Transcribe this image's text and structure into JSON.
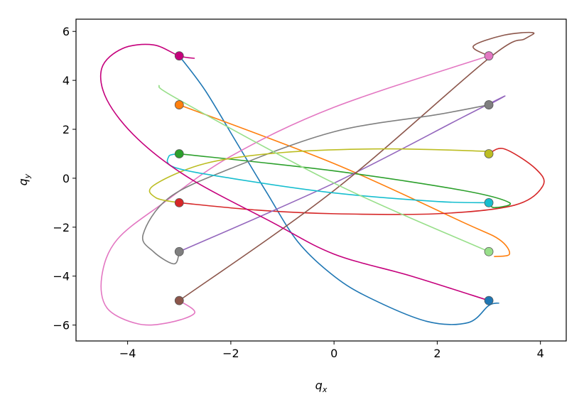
{
  "chart_data": {
    "type": "line",
    "xlabel": {
      "main": "q",
      "sub": "x"
    },
    "ylabel": {
      "main": "q",
      "sub": "y"
    },
    "xlim": [
      -5.0,
      4.5
    ],
    "ylim": [
      -6.65,
      6.5
    ],
    "xticks": [
      {
        "value": -4,
        "label": "−4"
      },
      {
        "value": -2,
        "label": "−2"
      },
      0,
      2,
      4
    ],
    "yticks": [
      {
        "value": -6,
        "label": "−6"
      },
      {
        "value": -4,
        "label": "−4"
      },
      {
        "value": -2,
        "label": "−2"
      },
      0,
      2,
      4,
      6
    ],
    "series": [
      {
        "color": "#1f77b4",
        "x": [
          -3,
          -2.5,
          -1.9,
          -1.3,
          -0.7,
          0,
          0.7,
          1.8,
          2.6,
          3.0,
          3.2
        ],
        "y": [
          5,
          3.6,
          1.5,
          -0.6,
          -2.6,
          -4.0,
          -4.9,
          -5.85,
          -5.9,
          -5.2,
          -5.1
        ]
      },
      {
        "color": "#ff7f0e",
        "x": [
          -3,
          0,
          2.5,
          3.2,
          3.4,
          3.1
        ],
        "y": [
          3,
          0.6,
          -1.8,
          -2.5,
          -3.1,
          -3.2
        ]
      },
      {
        "color": "#2ca02c",
        "x": [
          -3,
          0,
          2.5,
          3.4,
          3.1,
          3.0
        ],
        "y": [
          1,
          0.3,
          -0.5,
          -1.0,
          -1.2,
          -1.0
        ]
      },
      {
        "color": "#d62728",
        "x": [
          -3,
          -1.5,
          0,
          2,
          3.5,
          4.05,
          3.9,
          3.3,
          3.0
        ],
        "y": [
          -1,
          -1.3,
          -1.45,
          -1.45,
          -1.1,
          -0.3,
          0.4,
          1.2,
          1.0
        ]
      },
      {
        "color": "#9467bd",
        "x": [
          -3,
          0,
          2.5,
          3.3,
          3.0
        ],
        "y": [
          -3,
          -0.2,
          2.5,
          3.35,
          3.0
        ]
      },
      {
        "color": "#8c564b",
        "x": [
          -3,
          0,
          3,
          3.7,
          3.85,
          3.3,
          2.7,
          3.0
        ],
        "y": [
          -5,
          -0.5,
          4.9,
          5.7,
          5.95,
          5.85,
          5.4,
          5.0
        ]
      },
      {
        "color": "#e377c2",
        "x": [
          -3,
          -2.7,
          -3.2,
          -3.8,
          -4.4,
          -4.5,
          -4.2,
          -3.3,
          -2,
          0,
          3
        ],
        "y": [
          -5,
          -5.5,
          -5.9,
          -5.95,
          -5.3,
          -4,
          -2.5,
          -1,
          0.9,
          2.9,
          5
        ]
      },
      {
        "color": "#7f7f7f",
        "x": [
          -3,
          -3.1,
          -3.5,
          -3.7,
          -3.2,
          -2,
          0,
          2,
          3
        ],
        "y": [
          -3,
          -3.5,
          -3.0,
          -2.3,
          -0.8,
          0.4,
          1.9,
          2.6,
          3
        ]
      },
      {
        "color": "#bcbd22",
        "x": [
          3,
          1,
          -1,
          -2.5,
          -3.5,
          -3.45,
          -3
        ],
        "y": [
          1.1,
          1.2,
          1.05,
          0.6,
          -0.3,
          -0.8,
          -1
        ]
      },
      {
        "color": "#17becf",
        "x": [
          -3,
          -3.2,
          -3.1,
          -2,
          0,
          2,
          3
        ],
        "y": [
          1,
          0.9,
          0.45,
          0,
          -0.6,
          -0.95,
          -1
        ]
      },
      {
        "color": "#98df8a",
        "x": [
          -3.4,
          -3.0,
          0,
          3
        ],
        "y": [
          3.8,
          3.2,
          -0.2,
          -3
        ]
      },
      {
        "color": "#c5007c",
        "x": [
          -2.7,
          -3,
          -3.5,
          -4.1,
          -4.5,
          -4.4,
          -3.8,
          -2.8,
          -1.2,
          0,
          1.5,
          3
        ],
        "y": [
          4.9,
          5,
          5.45,
          5.3,
          4.5,
          3.2,
          1.6,
          0,
          -1.8,
          -3.1,
          -4,
          -5
        ]
      }
    ],
    "points": {
      "x": [
        -3,
        -3,
        -3,
        -3,
        -3,
        -3,
        3,
        3,
        3,
        3,
        3,
        3
      ],
      "y": [
        5,
        3,
        1,
        -1,
        -3,
        -5,
        5,
        3,
        1,
        -1,
        -3,
        -5
      ],
      "colors": [
        "#c5007c",
        "#ff7f0e",
        "#2ca02c",
        "#d62728",
        "#7f7f7f",
        "#8c564b",
        "#e377c2",
        "#7f7f7f",
        "#bcbd22",
        "#17becf",
        "#98df8a",
        "#1f77b4"
      ]
    }
  }
}
